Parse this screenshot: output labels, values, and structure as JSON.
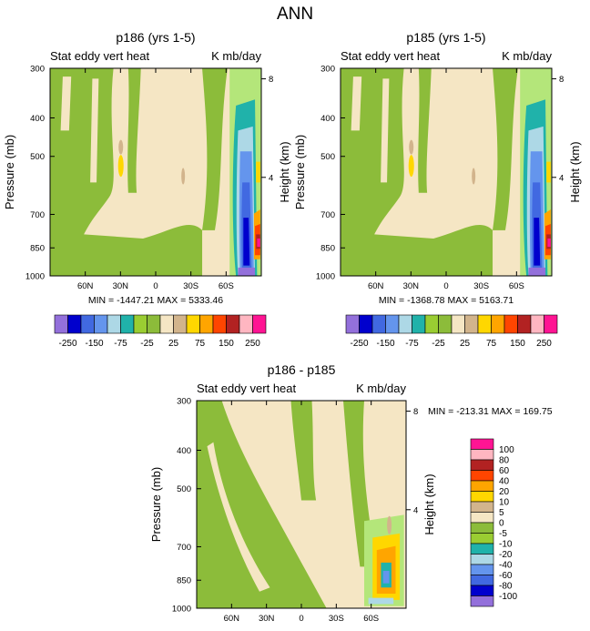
{
  "page_title": "ANN",
  "chart_data": [
    {
      "type": "heatmap",
      "title": "p186 (yrs 1-5)",
      "left_label": "Stat eddy vert heat",
      "right_label": "K mb/day",
      "ylabel": "Pressure (mb)",
      "ylabel_right": "Height (km)",
      "x_ticks": [
        "60N",
        "30N",
        "0",
        "30S",
        "60S"
      ],
      "x_tick_values": [
        60,
        30,
        0,
        -30,
        -60
      ],
      "xlim": [
        90,
        -90
      ],
      "y_ticks": [
        "300",
        "400",
        "500",
        "700",
        "850",
        "1000"
      ],
      "y_tick_values": [
        300,
        400,
        500,
        700,
        850,
        1000
      ],
      "ylim": [
        300,
        1000
      ],
      "height_ticks": [
        "8",
        "4"
      ],
      "height_tick_values": [
        8,
        4
      ],
      "stats": "MIN = -1447.21   MAX = 5333.46"
    },
    {
      "type": "heatmap",
      "title": "p185 (yrs 1-5)",
      "left_label": "Stat eddy vert heat",
      "right_label": "K mb/day",
      "ylabel": "Pressure (mb)",
      "ylabel_right": "Height (km)",
      "x_ticks": [
        "60N",
        "30N",
        "0",
        "30S",
        "60S"
      ],
      "x_tick_values": [
        60,
        30,
        0,
        -30,
        -60
      ],
      "xlim": [
        90,
        -90
      ],
      "y_ticks": [
        "300",
        "400",
        "500",
        "700",
        "850",
        "1000"
      ],
      "y_tick_values": [
        300,
        400,
        500,
        700,
        850,
        1000
      ],
      "ylim": [
        300,
        1000
      ],
      "height_ticks": [
        "8",
        "4"
      ],
      "height_tick_values": [
        8,
        4
      ],
      "stats": "MIN = -1368.78   MAX = 5163.71"
    },
    {
      "type": "heatmap",
      "title": "p186 - p185",
      "left_label": "Stat eddy vert heat",
      "right_label": "K mb/day",
      "ylabel": "Pressure (mb)",
      "ylabel_right": "Height (km)",
      "x_ticks": [
        "60N",
        "30N",
        "0",
        "30S",
        "60S"
      ],
      "x_tick_values": [
        60,
        30,
        0,
        -30,
        -60
      ],
      "xlim": [
        90,
        -90
      ],
      "y_ticks": [
        "300",
        "400",
        "500",
        "700",
        "850",
        "1000"
      ],
      "y_tick_values": [
        300,
        400,
        500,
        700,
        850,
        1000
      ],
      "ylim": [
        300,
        1000
      ],
      "height_ticks": [
        "8",
        "4"
      ],
      "height_tick_values": [
        8,
        4
      ],
      "stats": "MIN = -213.31   MAX = 169.75"
    }
  ],
  "colorbar_main": {
    "colors": [
      "#9370db",
      "#0000cd",
      "#4169e1",
      "#6495ed",
      "#add8e6",
      "#20b2aa",
      "#9acd32",
      "#8cbc3a",
      "#f5e6c4",
      "#d2b48c",
      "#ffd700",
      "#ffa500",
      "#ff4500",
      "#b22222",
      "#ffb6c1",
      "#ff1493"
    ],
    "labels": [
      "-250",
      "-150",
      "-75",
      "-25",
      "25",
      "75",
      "150",
      "250"
    ]
  },
  "colorbar_diff": {
    "colors": [
      "#9370db",
      "#0000cd",
      "#4169e1",
      "#6495ed",
      "#add8e6",
      "#20b2aa",
      "#9acd32",
      "#8cbc3a",
      "#f5e6c4",
      "#d2b48c",
      "#ffd700",
      "#ffa500",
      "#ff4500",
      "#b22222",
      "#ffb6c1",
      "#ff1493"
    ],
    "labels": [
      "-100",
      "-80",
      "-60",
      "-40",
      "-20",
      "-10",
      "-5",
      "0",
      "5",
      "10",
      "20",
      "40",
      "60",
      "80",
      "100"
    ]
  }
}
